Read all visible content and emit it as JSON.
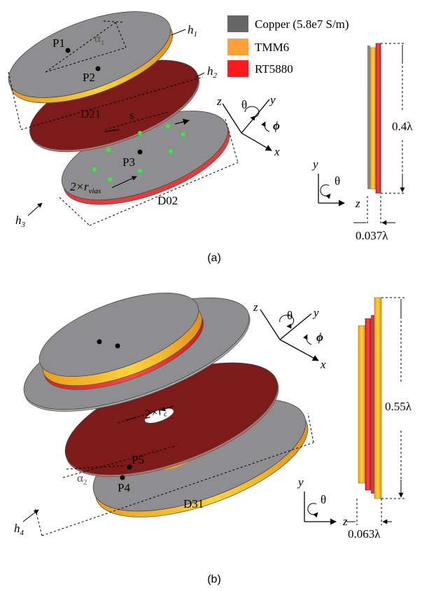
{
  "legend": [
    {
      "label": "Copper (5.8e7 S/m)"
    },
    {
      "label": "TMM6"
    },
    {
      "label": "RT5880"
    }
  ],
  "panel_a": {
    "caption": "(a)",
    "labels": {
      "p1": "P1",
      "alpha": {
        "base": "α",
        "sub": "1"
      },
      "p2": "P2",
      "h1": {
        "base": "h",
        "sub": "1"
      },
      "h2": {
        "base": "h",
        "sub": "2"
      },
      "d21": "D21",
      "s": "s",
      "p3": "P3",
      "rvias": {
        "base": "2×r",
        "sub": "vias"
      },
      "d02": "D02",
      "h3": {
        "base": "h",
        "sub": "3"
      }
    },
    "triad": {
      "z": "z",
      "theta": "θ",
      "y": "y",
      "phi": "ϕ",
      "x": "x"
    },
    "side": {
      "height": "0.4λ",
      "thickness": "0.037λ",
      "y": "y",
      "theta": "θ",
      "z": "z"
    }
  },
  "panel_b": {
    "caption": "(b)",
    "labels": {
      "rc": {
        "base": "2×r",
        "sub": "c"
      },
      "p5": "P5",
      "alpha": {
        "base": "α",
        "sub": "2"
      },
      "p4": "P4",
      "d31": "D31",
      "h4": {
        "base": "h",
        "sub": "4"
      }
    },
    "triad": {
      "z": "z",
      "theta": "θ",
      "y": "y",
      "phi": "ϕ",
      "x": "x"
    },
    "side": {
      "height": "0.55λ",
      "thickness": "0.063λ",
      "y": "y",
      "theta": "θ",
      "z": "z"
    }
  }
}
